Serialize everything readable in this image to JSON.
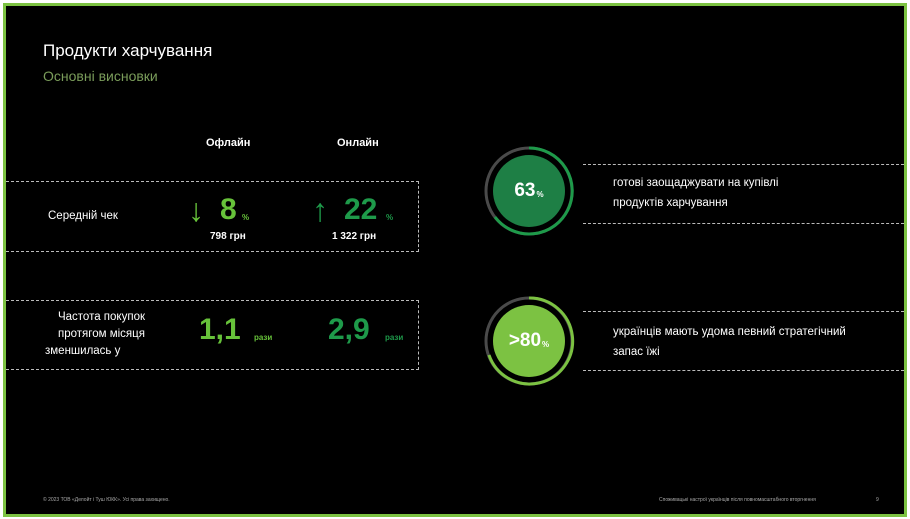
{
  "slide": {
    "title": "Продукти харчування",
    "subtitle": "Основні висновки",
    "colors": {
      "frame": "#7cc242",
      "background": "#000000",
      "dark_green": "#1e9a4a",
      "light_green": "#67c23a"
    }
  },
  "table": {
    "col_offline": "Офлайн",
    "col_online": "Онлайн",
    "row1": {
      "label": "Середній чек",
      "offline": {
        "arrow_icon": "arrow-down-icon",
        "arrow": "↓",
        "value": "8",
        "unit": "%",
        "sub": "798 грн"
      },
      "online": {
        "arrow_icon": "arrow-up-icon",
        "arrow": "↑",
        "value": "22",
        "unit": "%",
        "sub": "1 322 грн"
      }
    },
    "row2": {
      "label_line1": "Частота покупок",
      "label_line2": "протягом місяця",
      "label_line3": "зменшилась у",
      "offline": {
        "value": "1,1",
        "unit": "рази"
      },
      "online": {
        "value": "2,9",
        "unit": "рази"
      }
    }
  },
  "stats": [
    {
      "value": "63",
      "unit": "%",
      "text_line1": "готові заощаджувати на купівлі",
      "text_line2": "продуктів харчування"
    },
    {
      "value": ">80",
      "unit": "%",
      "text_line1": "українців мають удома певний стратегічний",
      "text_line2": "запас їжі"
    }
  ],
  "footer": {
    "left": "© 2023 ТОВ «Делойт і Туш ЮКК». Усі права захищено.",
    "right": "Споживацькі настрої українців після повномасштабного вторгнення",
    "page": "9"
  }
}
